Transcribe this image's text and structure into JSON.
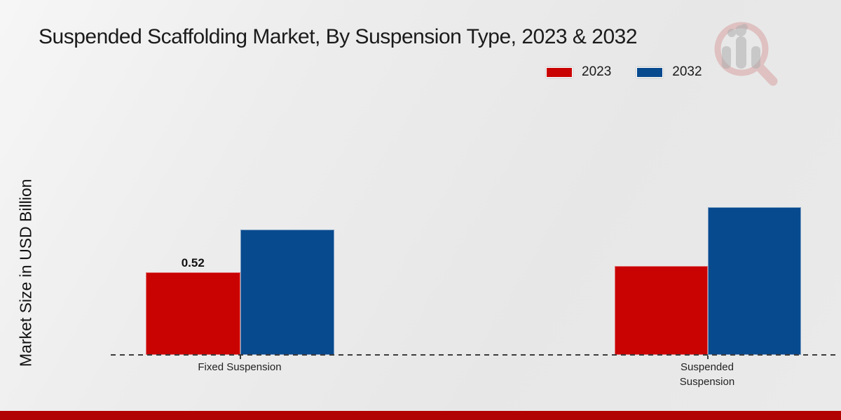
{
  "title": "Suspended Scaffolding Market, By Suspension Type, 2023 & 2032",
  "legend": {
    "items": [
      {
        "label": "2023",
        "color": "#c90202"
      },
      {
        "label": "2032",
        "color": "#084a8e"
      }
    ]
  },
  "footer": {
    "accent_color": "#b10303"
  },
  "chart_data": {
    "type": "bar",
    "title": "Suspended Scaffolding Market, By Suspension Type, 2023 & 2032",
    "categories": [
      "Fixed Suspension",
      "Suspended Suspension"
    ],
    "series": [
      {
        "name": "2023",
        "color": "#c90202",
        "values": [
          0.52,
          0.56
        ]
      },
      {
        "name": "2032",
        "color": "#084a8e",
        "values": [
          0.79,
          0.93
        ]
      }
    ],
    "value_labels": [
      {
        "series": "2023",
        "category": "Fixed Suspension",
        "text": "0.52"
      }
    ],
    "xlabel": "",
    "ylabel": "Market Size in USD Billion",
    "ylim": [
      0,
      1.0
    ],
    "grid": false,
    "legend_position": "top-right",
    "baseline_style": "dashed"
  }
}
